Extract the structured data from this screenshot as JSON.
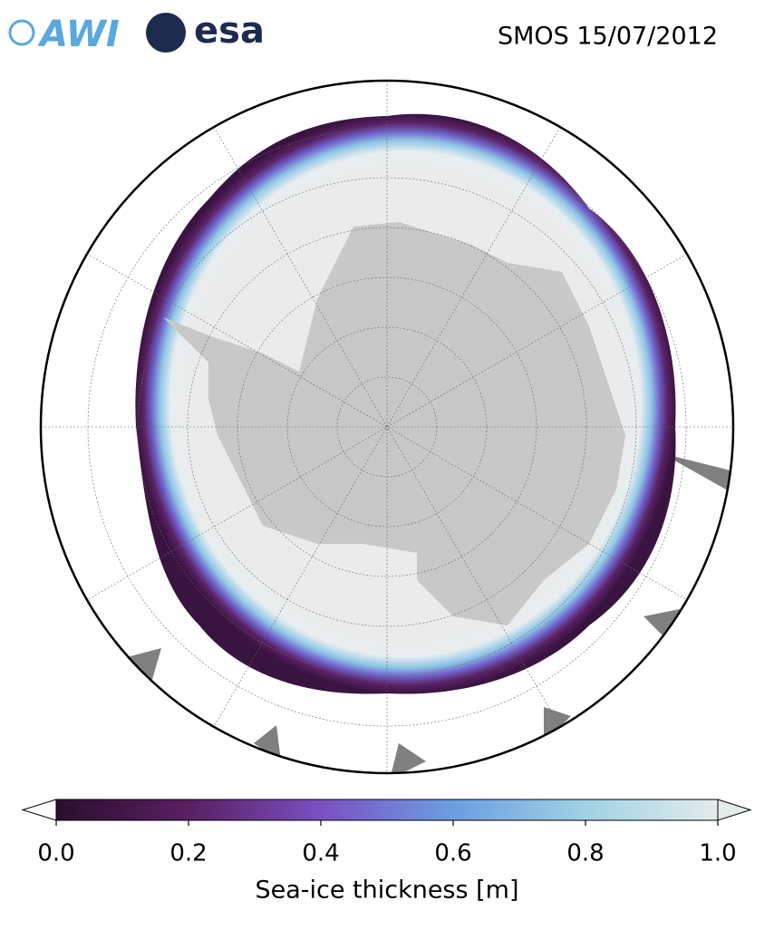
{
  "logos": {
    "awi": "AWI",
    "esa": "esa"
  },
  "title": "SMOS 15/07/2012",
  "colorbar": {
    "label": "Sea-ice thickness [m]",
    "lim": [
      0,
      1
    ],
    "ticks": [
      {
        "value": 0,
        "label": "0.0"
      },
      {
        "value": 0.2,
        "label": "0.2"
      },
      {
        "value": 0.4,
        "label": "0.4"
      },
      {
        "value": 0.6,
        "label": "0.6"
      },
      {
        "value": 0.8,
        "label": "0.8"
      },
      {
        "value": 1,
        "label": "1.0"
      }
    ]
  }
}
